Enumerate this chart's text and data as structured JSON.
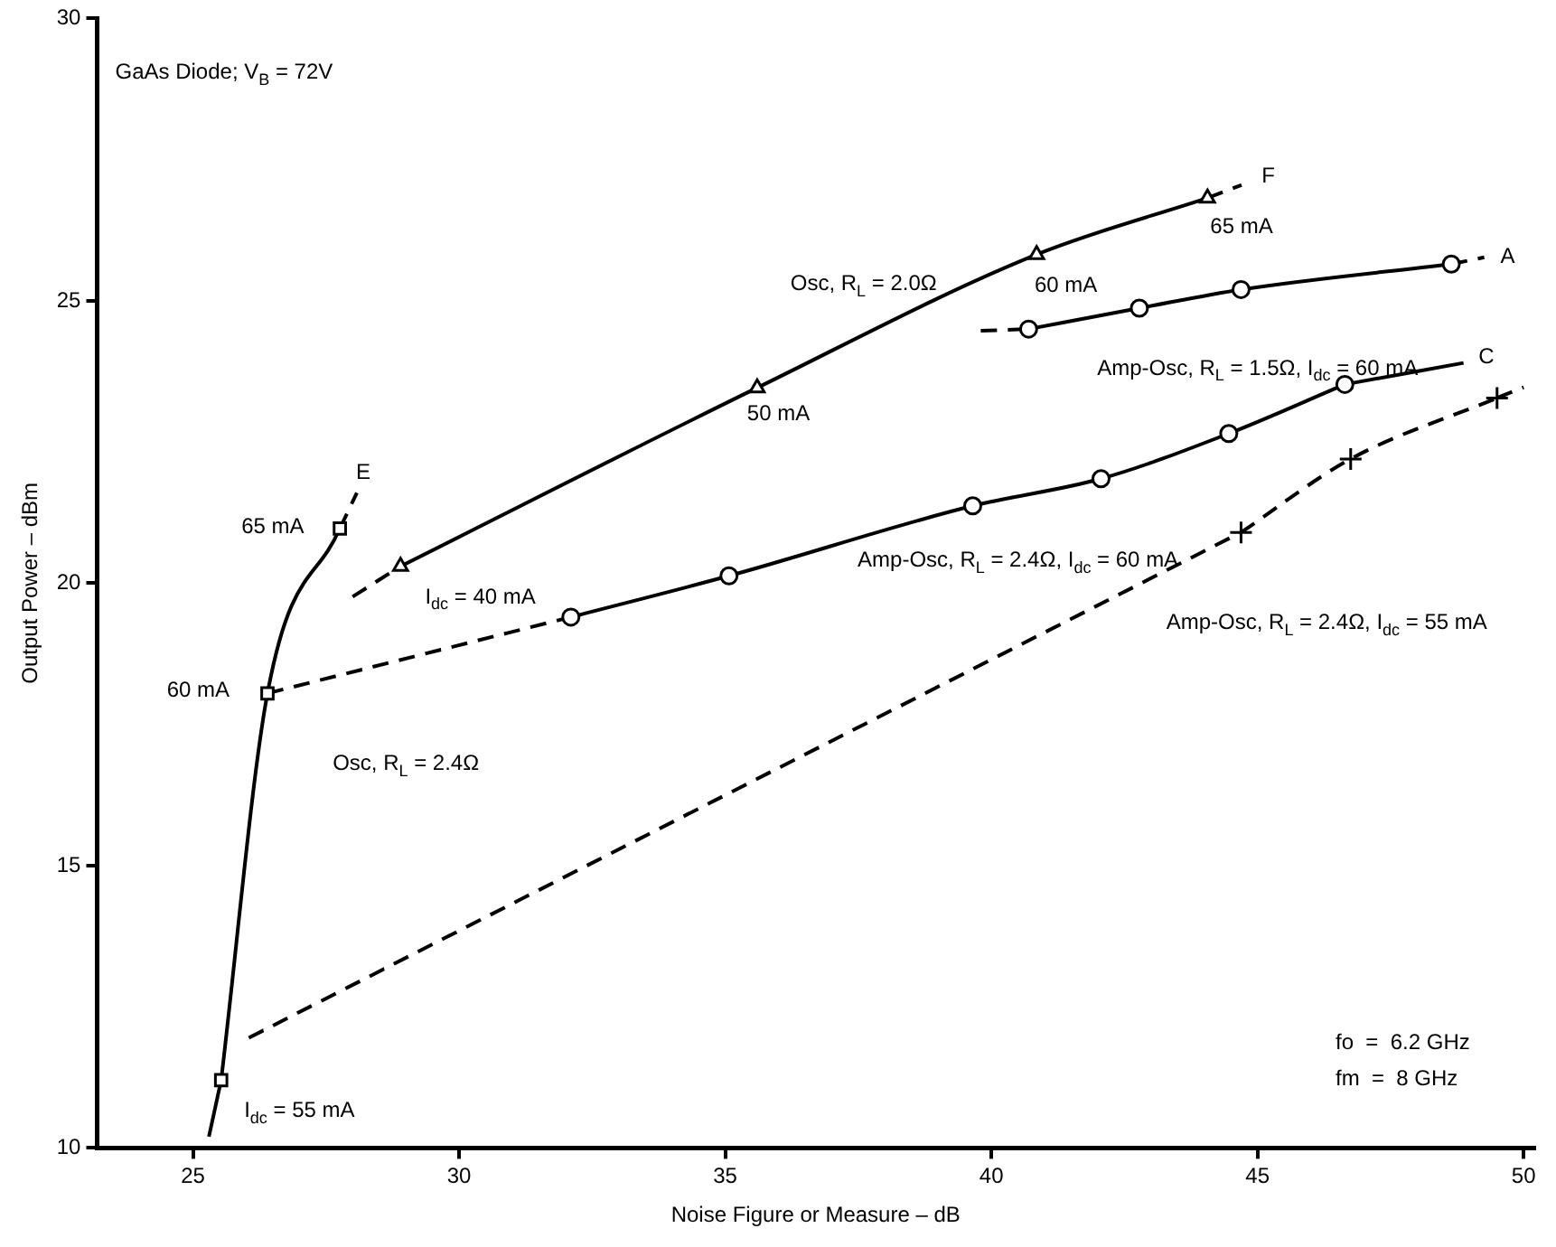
{
  "chart_data": {
    "type": "line",
    "xlabel": "Noise Figure or Measure – dB",
    "ylabel": "Output Power – dBm",
    "xlim": [
      23.2,
      50.2
    ],
    "xticks": [
      25,
      30,
      35,
      40,
      45,
      50
    ],
    "ylim": [
      10,
      30
    ],
    "yticks": [
      10,
      15,
      20,
      25,
      30
    ],
    "grid": false,
    "legend": false,
    "series": [
      {
        "type": "line",
        "color": "#000000",
        "line_style": "solid",
        "marker": "square",
        "x": [
          25.53,
          26.4,
          27.76
        ],
        "values": [
          11.2,
          18.05,
          20.97
        ]
      },
      {
        "type": "line",
        "color": "#000000",
        "line_style": "solid",
        "marker": "none",
        "x": [
          25.3,
          25.53
        ],
        "values": [
          10.2,
          11.2
        ]
      },
      {
        "type": "line",
        "color": "#000000",
        "line_style": "dashed",
        "marker": "none",
        "x": [
          27.76,
          28.08
        ],
        "values": [
          20.97,
          21.6
        ]
      },
      {
        "type": "line",
        "color": "#000000",
        "line_style": "solid",
        "marker": "triangle",
        "x": [
          28.9,
          35.6,
          40.85,
          44.06
        ],
        "values": [
          20.3,
          23.46,
          25.82,
          26.82
        ]
      },
      {
        "type": "line",
        "color": "#000000",
        "line_style": "dashed",
        "marker": "none",
        "x": [
          28.0,
          28.9,
          null,
          44.06,
          44.7
        ],
        "values": [
          19.76,
          20.3,
          null,
          26.82,
          27.05
        ]
      },
      {
        "type": "line",
        "color": "#000000",
        "line_style": "solid",
        "marker": "circle",
        "x": [
          40.7,
          42.78,
          44.69,
          48.64
        ],
        "values": [
          24.5,
          24.87,
          25.2,
          25.65
        ]
      },
      {
        "type": "line",
        "color": "#000000",
        "line_style": "dashed",
        "marker": "none",
        "x": [
          39.8,
          40.7,
          null,
          48.64,
          49.26
        ],
        "values": [
          24.47,
          24.5,
          null,
          25.65,
          25.77
        ]
      },
      {
        "type": "line",
        "color": "#000000",
        "line_style": "solid",
        "marker": "circle",
        "x": [
          32.1,
          35.07,
          39.65,
          42.06,
          44.46,
          46.64
        ],
        "values": [
          19.4,
          20.13,
          21.37,
          21.85,
          22.65,
          23.52
        ]
      },
      {
        "type": "line",
        "color": "#000000",
        "line_style": "solid",
        "marker": "none",
        "x": [
          46.64,
          48.87
        ],
        "values": [
          23.52,
          23.9
        ]
      },
      {
        "type": "line",
        "color": "#000000",
        "line_style": "dashed",
        "marker": "none",
        "x": [
          26.4,
          32.1
        ],
        "values": [
          18.05,
          19.4
        ]
      },
      {
        "type": "line",
        "color": "#000000",
        "line_style": "dashed",
        "marker": "cross",
        "x": [
          44.69,
          46.75,
          49.5
        ],
        "values": [
          20.9,
          22.2,
          23.28
        ]
      },
      {
        "type": "line",
        "color": "#000000",
        "line_style": "dashed",
        "marker": "none",
        "x": [
          26.05,
          44.69,
          null,
          49.5,
          50.0
        ],
        "values": [
          11.95,
          20.9,
          null,
          23.28,
          23.47
        ]
      }
    ],
    "annotations": [
      "GaAs Diode; V$_{B}$ = 72V",
      "fo  =  6.2 GHz",
      "fm  =  8 GHz",
      "E",
      "65 mA",
      "60 mA",
      "Osc, R$_{L}$ = 2.4Ω",
      "I$_{dc}$ = 55 mA",
      "I$_{dc}$ = 40 mA",
      "50 mA",
      "Osc, R$_{L}$ = 2.0Ω",
      "60 mA",
      "65 mA",
      "F",
      "A",
      "Amp-Osc, R$_{L}$ = 1.5Ω, I$_{dc}$ = 60 mA",
      "C",
      "Amp-Osc, R$_{L}$ = 2.4Ω, I$_{dc}$ = 60 mA",
      "Amp-Osc, R$_{L}$ = 2.4Ω, I$_{dc}$ = 55 mA"
    ]
  }
}
